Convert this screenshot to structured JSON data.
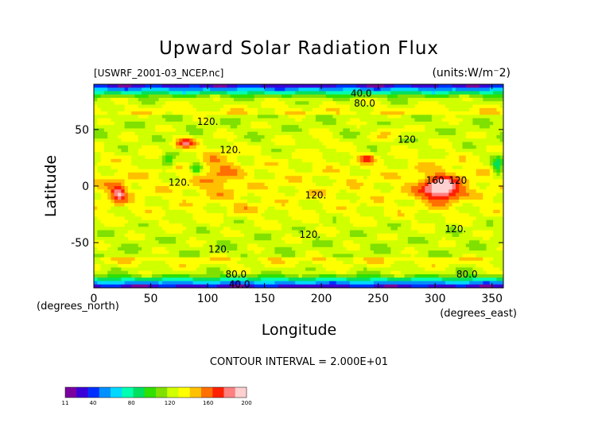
{
  "chart_data": {
    "type": "heatmap",
    "title": "Upward Solar Radiation Flux",
    "file_label": "[USWRF_2001-03_NCEP.nc]",
    "units_label": "(units:W/m⁻2)",
    "xlabel": "Longitude",
    "ylabel": "Latitude",
    "x_unit_label": "(degrees_east)",
    "y_unit_label": "(degrees_north)",
    "xlim": [
      0,
      360
    ],
    "ylim": [
      -90,
      90
    ],
    "x_ticks": [
      0,
      50,
      100,
      150,
      200,
      250,
      300,
      350
    ],
    "y_ticks": [
      50,
      0,
      -50
    ],
    "contour_interval_label": "CONTOUR INTERVAL = 2.000E+01",
    "contour_labels": [
      {
        "text": "40.0",
        "lon": 235,
        "lat": 82
      },
      {
        "text": "80.0",
        "lon": 238,
        "lat": 73
      },
      {
        "text": "120.",
        "lon": 100,
        "lat": 57
      },
      {
        "text": "120.",
        "lon": 120,
        "lat": 32
      },
      {
        "text": "120",
        "lon": 275,
        "lat": 41
      },
      {
        "text": "120.",
        "lon": 75,
        "lat": 3
      },
      {
        "text": "120.",
        "lon": 195,
        "lat": -8
      },
      {
        "text": "160",
        "lon": 300,
        "lat": 5
      },
      {
        "text": "120",
        "lon": 320,
        "lat": 5
      },
      {
        "text": "120.",
        "lon": 190,
        "lat": -43
      },
      {
        "text": "120.",
        "lon": 318,
        "lat": -38
      },
      {
        "text": "120.",
        "lon": 110,
        "lat": -56
      },
      {
        "text": "80.0",
        "lon": 125,
        "lat": -78
      },
      {
        "text": "80.0",
        "lon": 328,
        "lat": -78
      },
      {
        "text": "40.0",
        "lon": 128,
        "lat": -87
      }
    ],
    "colorbar": {
      "min": 11,
      "max": 200,
      "tick_labels": [
        "11",
        "40",
        "80",
        "120",
        "160",
        "200"
      ],
      "tick_values": [
        11,
        40,
        80,
        120,
        160,
        200
      ],
      "colors": [
        "#7a00a0",
        "#3a00d8",
        "#0030ff",
        "#0090ff",
        "#00d8ff",
        "#00ffb0",
        "#00e060",
        "#30e000",
        "#80e000",
        "#d0ff00",
        "#ffff00",
        "#ffc000",
        "#ff7000",
        "#ff2000",
        "#ff8080",
        "#ffd0d0"
      ]
    },
    "regions": [
      {
        "value": 185,
        "lon": 305,
        "lat": -3,
        "rlon": 14,
        "rlat": 9
      },
      {
        "value": 172,
        "lon": 80,
        "lat": 38,
        "rlon": 9,
        "rlat": 5
      },
      {
        "value": 168,
        "lon": 22,
        "lat": -6,
        "rlon": 6,
        "rlat": 8
      },
      {
        "value": 165,
        "lon": 240,
        "lat": 24,
        "rlon": 6,
        "rlat": 4
      },
      {
        "value": 150,
        "lon": 305,
        "lat": 0,
        "rlon": 26,
        "rlat": 16
      },
      {
        "value": 150,
        "lon": 110,
        "lat": 12,
        "rlon": 18,
        "rlat": 20
      },
      {
        "value": 145,
        "lon": 260,
        "lat": 48,
        "rlon": 12,
        "rlat": 6
      },
      {
        "value": 142,
        "lon": 20,
        "lat": -5,
        "rlon": 14,
        "rlat": 14
      },
      {
        "value": 140,
        "lon": 200,
        "lat": 40,
        "rlon": 10,
        "rlat": 6
      },
      {
        "value": 140,
        "lon": 135,
        "lat": -20,
        "rlon": 14,
        "rlat": 6
      },
      {
        "value": 92,
        "lon": 65,
        "lat": 22,
        "rlon": 6,
        "rlat": 6
      },
      {
        "value": 90,
        "lon": 355,
        "lat": 18,
        "rlon": 5,
        "rlat": 10
      },
      {
        "value": 88,
        "lon": 90,
        "lat": 16,
        "rlon": 5,
        "rlat": 6
      }
    ]
  }
}
